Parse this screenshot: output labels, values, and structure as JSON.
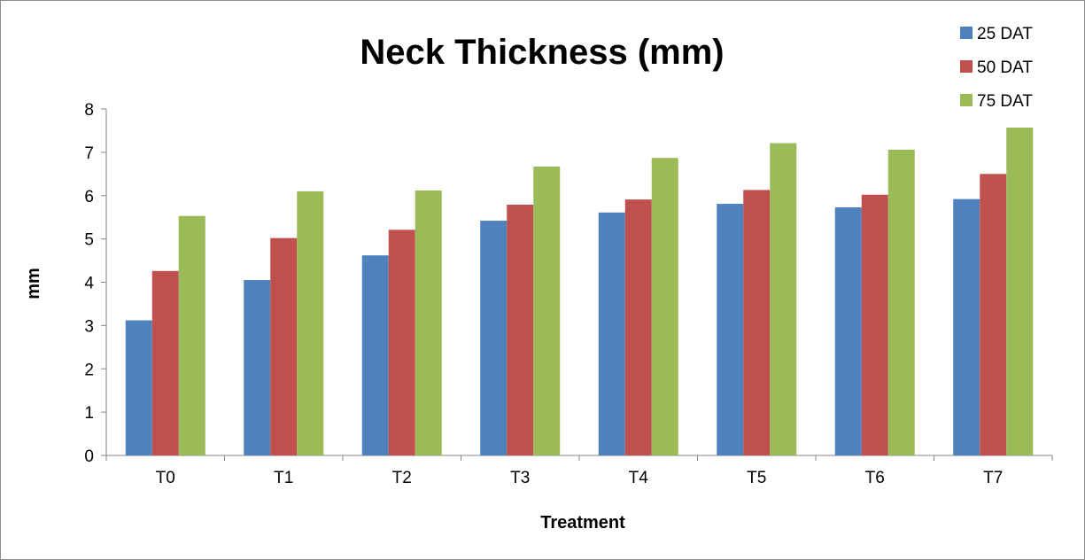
{
  "chart_data": {
    "type": "bar",
    "title": "Neck Thickness (mm)",
    "xlabel": "Treatment",
    "ylabel": "mm",
    "categories": [
      "T0",
      "T1",
      "T2",
      "T3",
      "T4",
      "T5",
      "T6",
      "T7"
    ],
    "series": [
      {
        "name": "25 DAT",
        "color": "#4f81bd",
        "values": [
          3.12,
          4.05,
          4.62,
          5.42,
          5.61,
          5.81,
          5.73,
          5.92
        ]
      },
      {
        "name": "50 DAT",
        "color": "#c0504d",
        "values": [
          4.26,
          5.02,
          5.21,
          5.79,
          5.91,
          6.13,
          6.02,
          6.5
        ]
      },
      {
        "name": "75 DAT",
        "color": "#9bbb59",
        "values": [
          5.53,
          6.1,
          6.12,
          6.67,
          6.87,
          7.21,
          7.06,
          7.57
        ]
      }
    ],
    "ylim": [
      0,
      8
    ],
    "yticks": [
      0,
      1,
      2,
      3,
      4,
      5,
      6,
      7,
      8
    ],
    "grid": false,
    "legend_position": "top-right"
  }
}
